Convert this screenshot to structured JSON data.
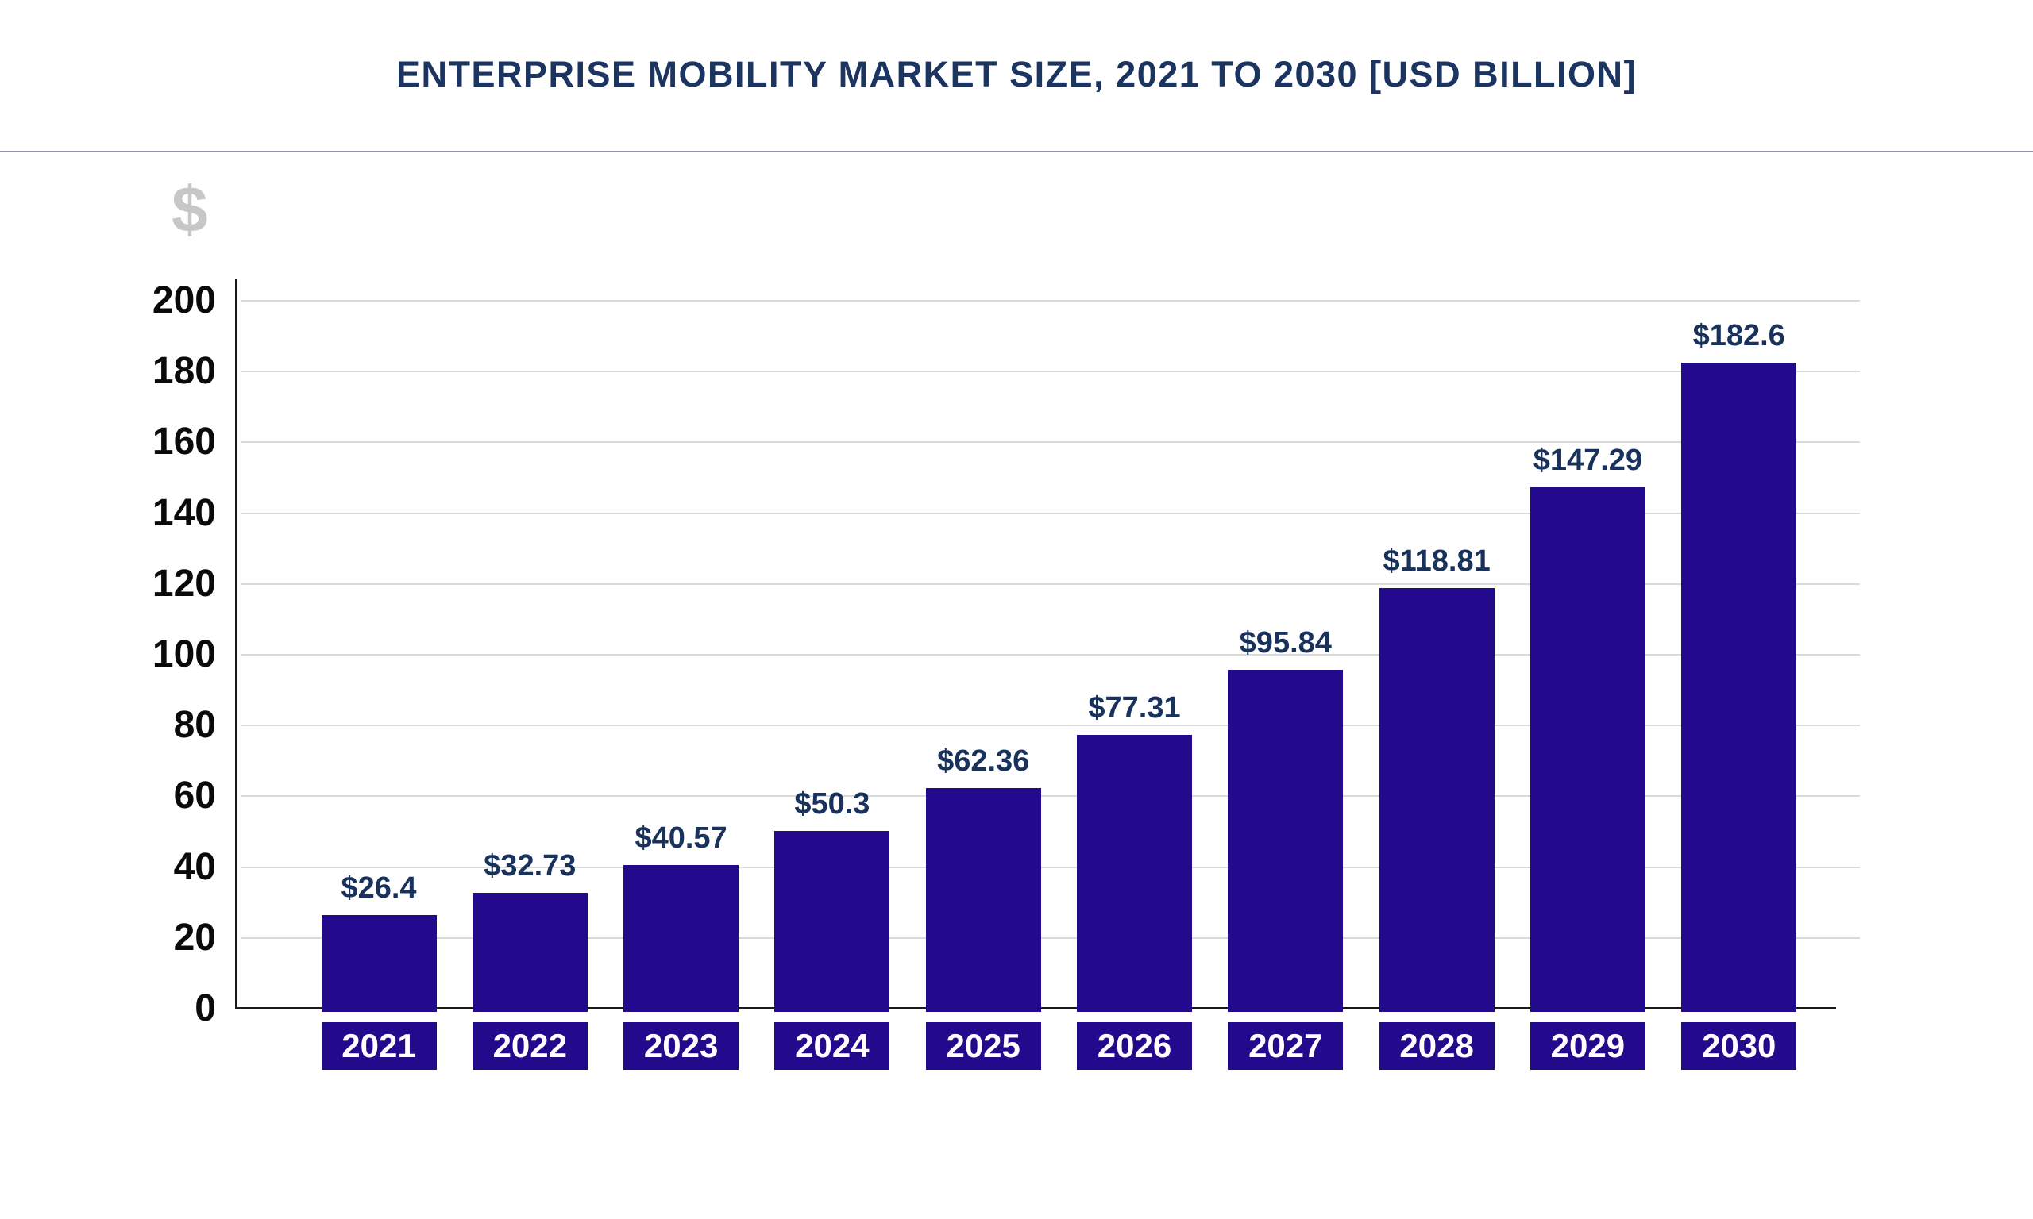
{
  "header": {
    "title": "ENTERPRISE MOBILITY MARKET SIZE, 2021 TO 2030 [USD BILLION]"
  },
  "chart_data": {
    "type": "bar",
    "title": "ENTERPRISE MOBILITY MARKET SIZE, 2021 TO 2030 [USD BILLION]",
    "currency_axis_symbol": "$",
    "categories": [
      "2021",
      "2022",
      "2023",
      "2024",
      "2025",
      "2026",
      "2027",
      "2028",
      "2029",
      "2030"
    ],
    "values": [
      26.4,
      32.73,
      40.57,
      50.3,
      62.36,
      77.31,
      95.84,
      118.81,
      147.29,
      182.6
    ],
    "value_labels": [
      "$26.4",
      "$32.73",
      "$40.57",
      "$50.3",
      "$62.36",
      "$77.31",
      "$95.84",
      "$118.81",
      "$147.29",
      "$182.6"
    ],
    "xlabel": "",
    "ylabel": "$",
    "ylim": [
      0,
      200
    ],
    "yticks": [
      0,
      20,
      40,
      60,
      80,
      100,
      120,
      140,
      160,
      180,
      200
    ],
    "grid": true,
    "legend": false
  },
  "colors": {
    "bar": "#23098b",
    "year_box": "#23098b",
    "year_text": "#ffffff",
    "value_label": "#18325c",
    "title": "#1b3560",
    "tick_label": "#0a0a0a",
    "axis": "#1a1a1a",
    "gridline": "#dadada",
    "divider": "#9093a5",
    "currency_symbol": "#c7c7c7",
    "background": "#ffffff"
  }
}
